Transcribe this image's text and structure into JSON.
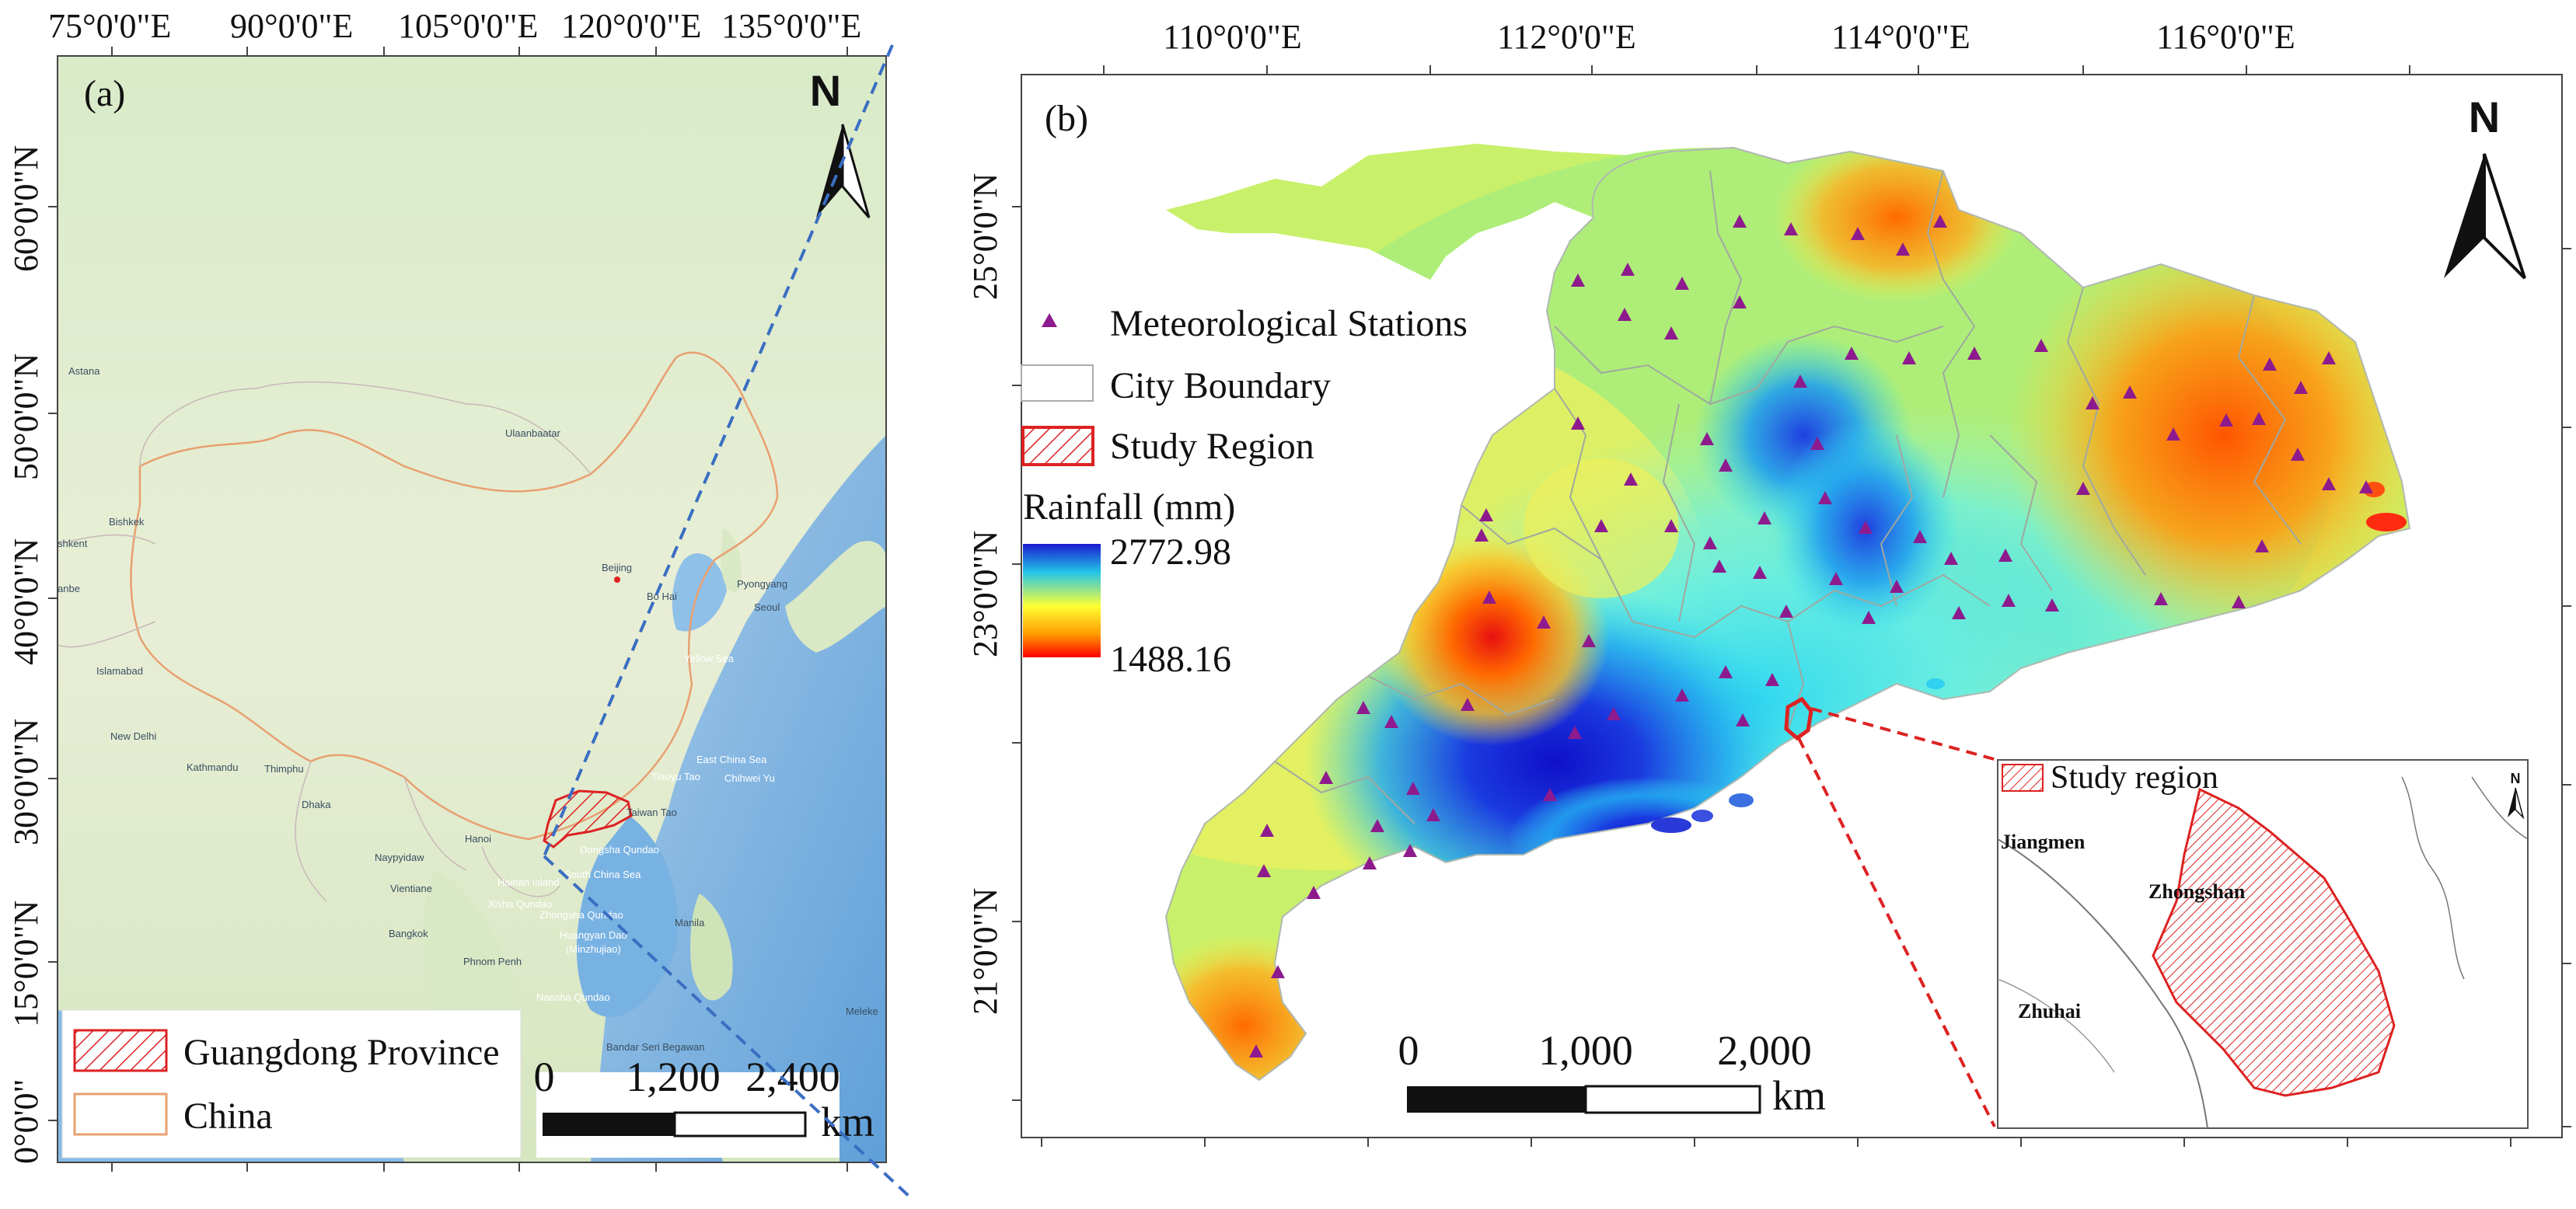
{
  "panel_a": {
    "label": "(a)",
    "x_ticks": [
      "75°0'0\"E",
      "90°0'0\"E",
      "105°0'0\"E",
      "120°0'0\"E",
      "135°0'0\"E"
    ],
    "y_ticks": [
      "60°0'0\"N",
      "50°0'0\"N",
      "40°0'0\"N",
      "30°0'0\"N",
      "15°0'0\"N",
      "0°0'0\""
    ],
    "places": [
      "Astana",
      "Ulaanbaatar",
      "Bishkek",
      "shkent",
      "anbe",
      "Beijing",
      "Bo Hai",
      "Pyongyang",
      "Seoul",
      "Islamabad",
      "Yellow Sea",
      "New Delhi",
      "Kathmandu",
      "Thimphu",
      "East China Sea",
      "Tiaoyu Tao",
      "Chihwei Yu",
      "Dhaka",
      "Taiwan Tao",
      "Hanoi",
      "Naypyidaw",
      "Dongsha Qundao",
      "Vientiane",
      "Hainan Island",
      "South China Sea",
      "Xisha Qundao",
      "Bangkok",
      "Zhongsha Qundao",
      "Huangyan Dao",
      "(Minzhujiao)",
      "Manila",
      "Phnom Penh",
      "Nansha Qundao",
      "Bandar Seri Begawan",
      "Meleke"
    ],
    "north_label": "N",
    "legend": [
      {
        "label": "Guangdong Province",
        "symbol": "hatched-red"
      },
      {
        "label": "China",
        "symbol": "outline-orange"
      }
    ],
    "scale": {
      "labels": [
        "0",
        "1,200",
        "2,400"
      ],
      "unit": "km"
    }
  },
  "panel_b": {
    "label": "(b)",
    "x_ticks": [
      "110°0'0\"E",
      "112°0'0\"E",
      "114°0'0\"E",
      "116°0'0\"E"
    ],
    "y_ticks": [
      "25°0'0\"N",
      "23°0'0\"N",
      "21°0'0\"N"
    ],
    "north_label": "N",
    "legend": {
      "stations": "Meteorological Stations",
      "city_boundary": "City Boundary",
      "study_region": "Study Region",
      "rainfall_title": "Rainfall (mm)",
      "rainfall_max": "2772.98",
      "rainfall_min": "1488.16"
    },
    "scale": {
      "labels": [
        "0",
        "1,000",
        "2,000"
      ],
      "unit": "km"
    },
    "inset": {
      "legend": "Study region",
      "north_label": "N",
      "places": [
        "Jiangmen",
        "Zhongshan",
        "Zhuhai"
      ]
    }
  },
  "colors": {
    "rainfall_high": "#1a1ad0",
    "rainfall_mid": "#ffff33",
    "rainfall_low": "#ff0000",
    "station": "#8e1b8e",
    "study_region": "#dd2222",
    "china_border": "#e8a070",
    "leader_line_a": "#3a6ec2",
    "leader_line_b": "#dd2222"
  }
}
